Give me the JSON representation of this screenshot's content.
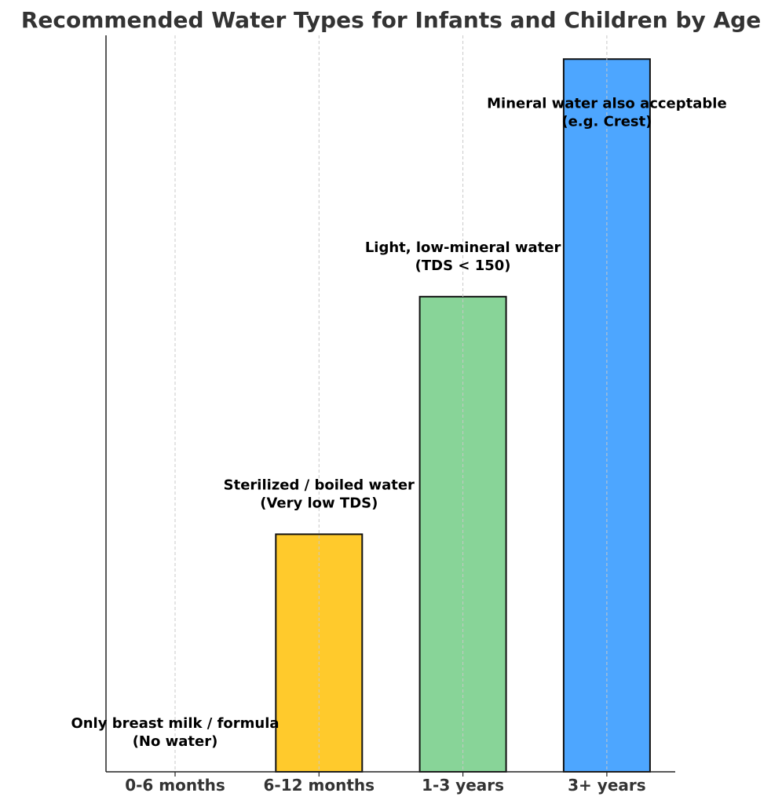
{
  "chart_data": {
    "type": "bar",
    "title": "Recommended Water Types for Infants and Children by Age",
    "xlabel": "",
    "ylabel": "",
    "categories": [
      "0-6 months",
      "6-12 months",
      "1-3 years",
      "3+ years"
    ],
    "values": [
      0,
      1,
      2,
      3
    ],
    "colors": [
      "#cccccc",
      "#ffca2c",
      "#88d498",
      "#4da6ff"
    ],
    "annotations": [
      {
        "line1": "Only breast milk / formula",
        "line2": "(No water)"
      },
      {
        "line1": "Sterilized / boiled water",
        "line2": "(Very low TDS)"
      },
      {
        "line1": "Light, low-mineral water",
        "line2": "(TDS < 150)"
      },
      {
        "line1": "Mineral water also acceptable",
        "line2": "(e.g. Crest)"
      }
    ],
    "ylim": [
      0,
      3.1
    ],
    "grid": "vertical-dashed",
    "y_ticks_visible": false
  }
}
